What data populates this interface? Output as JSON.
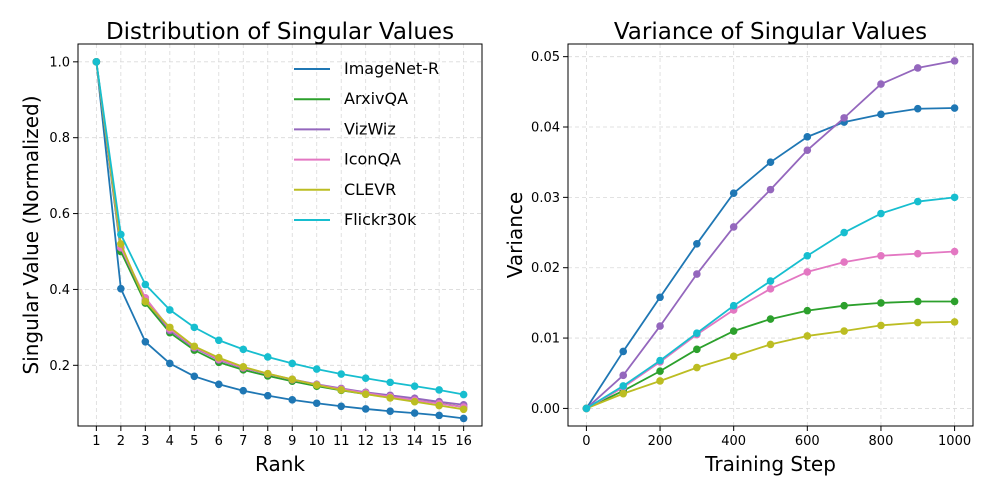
{
  "chart_data": [
    {
      "type": "line",
      "title": "Distribution of Singular Values",
      "xlabel": "Rank",
      "ylabel": "Singular Value (Normalized)",
      "x": [
        1,
        2,
        3,
        4,
        5,
        6,
        7,
        8,
        9,
        10,
        11,
        12,
        13,
        14,
        15,
        16
      ],
      "xticks": [
        1,
        2,
        3,
        4,
        5,
        6,
        7,
        8,
        9,
        10,
        11,
        12,
        13,
        14,
        15,
        16
      ],
      "yticks": [
        0.2,
        0.4,
        0.6,
        0.8,
        1.0
      ],
      "ytick_labels": [
        "0.2",
        "0.4",
        "0.6",
        "0.8",
        "1.0"
      ],
      "xlim": [
        0.25,
        16.75
      ],
      "ylim": [
        0.04,
        1.047
      ],
      "grid": true,
      "legend": "top-right",
      "series": [
        {
          "name": "ImageNet-R",
          "color": "#1f77b4",
          "values": [
            1.0,
            0.402,
            0.262,
            0.205,
            0.171,
            0.15,
            0.133,
            0.12,
            0.109,
            0.1,
            0.092,
            0.085,
            0.079,
            0.074,
            0.068,
            0.06
          ]
        },
        {
          "name": "ArxivQA",
          "color": "#2ca02c",
          "values": [
            1.0,
            0.5,
            0.364,
            0.286,
            0.24,
            0.208,
            0.188,
            0.172,
            0.158,
            0.145,
            0.134,
            0.124,
            0.116,
            0.108,
            0.1,
            0.09
          ]
        },
        {
          "name": "VizWiz",
          "color": "#9467bd",
          "values": [
            1.0,
            0.51,
            0.372,
            0.292,
            0.246,
            0.214,
            0.193,
            0.177,
            0.163,
            0.15,
            0.139,
            0.129,
            0.121,
            0.113,
            0.104,
            0.096
          ]
        },
        {
          "name": "IconQA",
          "color": "#e377c2",
          "values": [
            1.0,
            0.51,
            0.378,
            0.296,
            0.248,
            0.216,
            0.194,
            0.178,
            0.162,
            0.149,
            0.137,
            0.127,
            0.117,
            0.108,
            0.099,
            0.09
          ]
        },
        {
          "name": "CLEVR",
          "color": "#bcbd22",
          "values": [
            1.0,
            0.52,
            0.368,
            0.3,
            0.25,
            0.22,
            0.196,
            0.178,
            0.163,
            0.148,
            0.135,
            0.124,
            0.114,
            0.104,
            0.094,
            0.084
          ]
        },
        {
          "name": "Flickr30k",
          "color": "#17becf",
          "values": [
            1.0,
            0.545,
            0.413,
            0.346,
            0.3,
            0.266,
            0.242,
            0.222,
            0.205,
            0.19,
            0.177,
            0.166,
            0.155,
            0.145,
            0.135,
            0.123
          ]
        }
      ]
    },
    {
      "type": "line",
      "title": "Variance of Singular Values",
      "xlabel": "Training Step",
      "ylabel": "Variance",
      "x": [
        0,
        100,
        200,
        300,
        400,
        500,
        600,
        700,
        800,
        900,
        1000
      ],
      "xticks": [
        0,
        200,
        400,
        600,
        800,
        1000
      ],
      "yticks": [
        0.0,
        0.01,
        0.02,
        0.03,
        0.04,
        0.05
      ],
      "ytick_labels": [
        "0.00",
        "0.01",
        "0.02",
        "0.03",
        "0.04",
        "0.05"
      ],
      "xlim": [
        -50,
        1050
      ],
      "ylim": [
        -0.0025,
        0.0518
      ],
      "grid": true,
      "series": [
        {
          "name": "ImageNet-R",
          "color": "#1f77b4",
          "values": [
            0.0,
            0.0081,
            0.0158,
            0.0234,
            0.0306,
            0.035,
            0.0386,
            0.0407,
            0.0418,
            0.0426,
            0.0427
          ]
        },
        {
          "name": "ArxivQA",
          "color": "#2ca02c",
          "values": [
            0.0,
            0.0025,
            0.0053,
            0.0084,
            0.011,
            0.0127,
            0.0139,
            0.0146,
            0.015,
            0.0152,
            0.0152
          ]
        },
        {
          "name": "VizWiz",
          "color": "#9467bd",
          "values": [
            0.0,
            0.0047,
            0.0117,
            0.0191,
            0.0258,
            0.0311,
            0.0367,
            0.0413,
            0.0461,
            0.0484,
            0.0494
          ]
        },
        {
          "name": "IconQA",
          "color": "#e377c2",
          "values": [
            0.0,
            0.003,
            0.0066,
            0.0105,
            0.014,
            0.017,
            0.0194,
            0.0208,
            0.0217,
            0.022,
            0.0223
          ]
        },
        {
          "name": "CLEVR",
          "color": "#bcbd22",
          "values": [
            0.0,
            0.0021,
            0.0039,
            0.0058,
            0.0074,
            0.0091,
            0.0103,
            0.011,
            0.0118,
            0.0122,
            0.0123
          ]
        },
        {
          "name": "Flickr30k",
          "color": "#17becf",
          "values": [
            0.0,
            0.0032,
            0.0068,
            0.0107,
            0.0146,
            0.0181,
            0.0217,
            0.025,
            0.0277,
            0.0294,
            0.03
          ]
        }
      ]
    }
  ]
}
